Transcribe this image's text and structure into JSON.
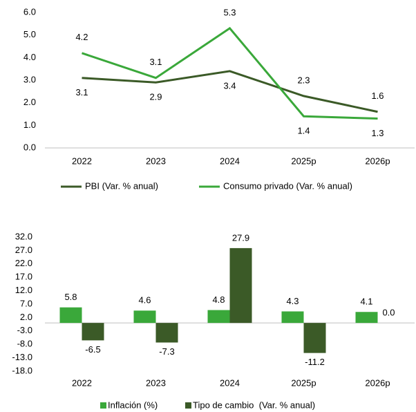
{
  "chart_data": [
    {
      "type": "line",
      "categories": [
        "2022",
        "2023",
        "2024",
        "2025p",
        "2026p"
      ],
      "series": [
        {
          "name": "PBI (Var. % anual)",
          "color": "#3b5a27",
          "values": [
            3.1,
            2.9,
            3.4,
            2.3,
            1.6
          ]
        },
        {
          "name": "Consumo privado (Var. % anual)",
          "color": "#3aa83a",
          "values": [
            4.2,
            3.1,
            5.3,
            1.4,
            1.3
          ]
        }
      ],
      "ylim": [
        0,
        6
      ],
      "yticks": [
        {
          "value": 0,
          "label": "0.0"
        },
        {
          "value": 1,
          "label": "1.0"
        },
        {
          "value": 2,
          "label": "2.0"
        },
        {
          "value": 3,
          "label": "3.0"
        },
        {
          "value": 4,
          "label": "4.0"
        },
        {
          "value": 5,
          "label": "5.0"
        },
        {
          "value": 6,
          "label": "6.0"
        }
      ],
      "legend": "bottom"
    },
    {
      "type": "bar",
      "categories": [
        "2022",
        "2023",
        "2024",
        "2025p",
        "2026p"
      ],
      "series": [
        {
          "name": "Inflación (%)",
          "color": "#3aa83a",
          "values": [
            5.8,
            4.6,
            4.8,
            4.3,
            4.1
          ]
        },
        {
          "name": "Tipo de cambio  (Var. % anual)",
          "color": "#3b5a27",
          "values": [
            -6.5,
            -7.3,
            27.9,
            -11.2,
            0.0
          ],
          "value_labels": [
            "-6.5",
            "-7.3",
            "27.9",
            "-11.2",
            "0.0"
          ]
        }
      ],
      "ylim": [
        -18,
        32
      ],
      "yticks": [
        {
          "value": 32,
          "label": "32.0"
        },
        {
          "value": 27,
          "label": "27.0"
        },
        {
          "value": 22,
          "label": "22.0"
        },
        {
          "value": 17,
          "label": "17.0"
        },
        {
          "value": 12,
          "label": "12.0"
        },
        {
          "value": 7,
          "label": "7.0"
        },
        {
          "value": 2,
          "label": "2.0"
        },
        {
          "value": -3,
          "label": "-3.0"
        },
        {
          "value": -8,
          "label": "-8.0"
        },
        {
          "value": -13,
          "label": "-13.0"
        },
        {
          "value": -18,
          "label": "-18.0"
        }
      ],
      "legend": "bottom"
    }
  ]
}
